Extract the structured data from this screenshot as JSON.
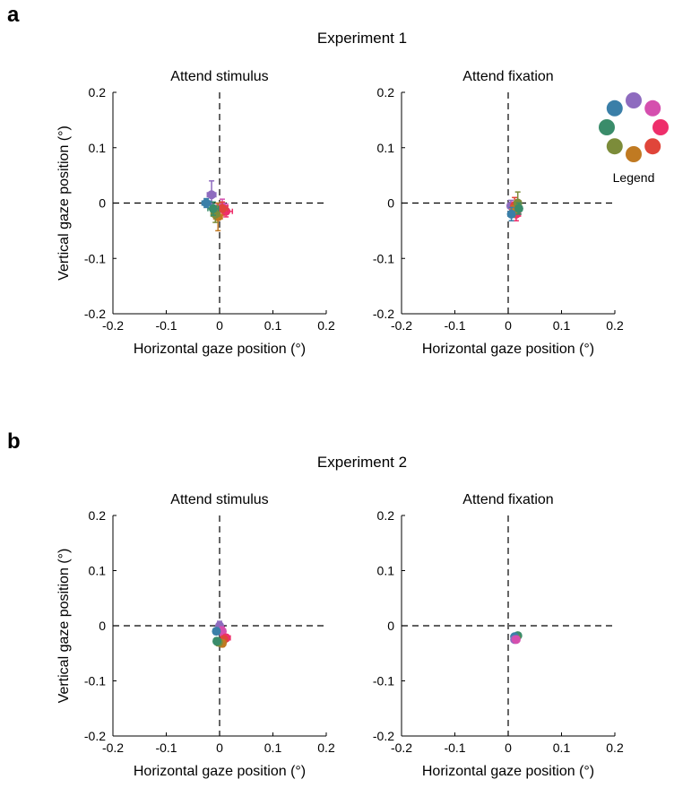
{
  "panels": [
    {
      "letter": "a",
      "title": "Experiment 1"
    },
    {
      "letter": "b",
      "title": "Experiment 2"
    }
  ],
  "legend": {
    "label": "Legend",
    "colors": [
      "#8e6bbf",
      "#d54fae",
      "#ee2f6b",
      "#e0453a",
      "#c07a22",
      "#7c8c3a",
      "#3a8c6a",
      "#3a7fa8"
    ]
  },
  "reference_lines": {
    "x": 0,
    "y": 0,
    "style": "dashed"
  },
  "chart_data": [
    {
      "type": "scatter",
      "experiment": "Experiment 1",
      "title": "Attend stimulus",
      "xlabel": "Horizontal gaze position (°)",
      "ylabel": "Vertical gaze position (°)",
      "xlim": [
        -0.2,
        0.2
      ],
      "ylim": [
        -0.2,
        0.2
      ],
      "xticks": [
        "-0.2",
        "-0.1",
        "0",
        "0.1",
        "0.2"
      ],
      "yticks": [
        "-0.2",
        "-0.1",
        "0",
        "0.1",
        "0.2"
      ],
      "points": [
        {
          "color": "#8e6bbf",
          "x": -0.015,
          "y": 0.015,
          "xerr": 0.008,
          "yerr": 0.025
        },
        {
          "color": "#d54fae",
          "x": 0.005,
          "y": -0.005,
          "xerr": 0.01,
          "yerr": 0.012
        },
        {
          "color": "#ee2f6b",
          "x": 0.012,
          "y": -0.015,
          "xerr": 0.012,
          "yerr": 0.01
        },
        {
          "color": "#e0453a",
          "x": 0.005,
          "y": -0.01,
          "xerr": 0.01,
          "yerr": 0.012
        },
        {
          "color": "#c07a22",
          "x": -0.003,
          "y": -0.025,
          "xerr": 0.008,
          "yerr": 0.025
        },
        {
          "color": "#7c8c3a",
          "x": -0.008,
          "y": -0.02,
          "xerr": 0.008,
          "yerr": 0.015
        },
        {
          "color": "#3a8c6a",
          "x": -0.012,
          "y": -0.01,
          "xerr": 0.01,
          "yerr": 0.012
        },
        {
          "color": "#3a7fa8",
          "x": -0.025,
          "y": 0.0,
          "xerr": 0.008,
          "yerr": 0.008
        }
      ]
    },
    {
      "type": "scatter",
      "experiment": "Experiment 1",
      "title": "Attend fixation",
      "xlabel": "Horizontal gaze position (°)",
      "ylabel": "",
      "xlim": [
        -0.2,
        0.2
      ],
      "ylim": [
        -0.2,
        0.2
      ],
      "xticks": [
        "-0.2",
        "-0.1",
        "0",
        "0.1",
        "0.2"
      ],
      "yticks": [
        "-0.2",
        "-0.1",
        "0",
        "0.1",
        "0.2"
      ],
      "points": [
        {
          "color": "#8e6bbf",
          "x": 0.005,
          "y": -0.005,
          "xerr": 0.006,
          "yerr": 0.01
        },
        {
          "color": "#d54fae",
          "x": 0.01,
          "y": -0.01,
          "xerr": 0.006,
          "yerr": 0.012
        },
        {
          "color": "#ee2f6b",
          "x": 0.015,
          "y": -0.02,
          "xerr": 0.008,
          "yerr": 0.012
        },
        {
          "color": "#e0453a",
          "x": 0.012,
          "y": -0.005,
          "xerr": 0.006,
          "yerr": 0.015
        },
        {
          "color": "#c07a22",
          "x": 0.01,
          "y": -0.015,
          "xerr": 0.006,
          "yerr": 0.01
        },
        {
          "color": "#7c8c3a",
          "x": 0.018,
          "y": 0.0,
          "xerr": 0.006,
          "yerr": 0.02
        },
        {
          "color": "#3a8c6a",
          "x": 0.02,
          "y": -0.01,
          "xerr": 0.006,
          "yerr": 0.01
        },
        {
          "color": "#3a7fa8",
          "x": 0.006,
          "y": -0.02,
          "xerr": 0.006,
          "yerr": 0.012
        }
      ]
    },
    {
      "type": "scatter",
      "experiment": "Experiment 2",
      "title": "Attend stimulus",
      "xlabel": "Horizontal gaze position (°)",
      "ylabel": "Vertical gaze position (°)",
      "xlim": [
        -0.2,
        0.2
      ],
      "ylim": [
        -0.2,
        0.2
      ],
      "xticks": [
        "-0.2",
        "-0.1",
        "0",
        "0.1",
        "0.2"
      ],
      "yticks": [
        "-0.2",
        "-0.1",
        "0",
        "0.1",
        "0.2"
      ],
      "points": [
        {
          "color": "#8e6bbf",
          "x": 0.0,
          "y": 0.0,
          "xerr": 0.005,
          "yerr": 0.008
        },
        {
          "color": "#d54fae",
          "x": 0.005,
          "y": -0.01,
          "xerr": 0.006,
          "yerr": 0.008
        },
        {
          "color": "#ee2f6b",
          "x": 0.012,
          "y": -0.022,
          "xerr": 0.008,
          "yerr": 0.006
        },
        {
          "color": "#e0453a",
          "x": 0.008,
          "y": -0.025,
          "xerr": 0.006,
          "yerr": 0.006
        },
        {
          "color": "#c07a22",
          "x": 0.005,
          "y": -0.032,
          "xerr": 0.006,
          "yerr": 0.006
        },
        {
          "color": "#7c8c3a",
          "x": -0.002,
          "y": -0.03,
          "xerr": 0.006,
          "yerr": 0.006
        },
        {
          "color": "#3a8c6a",
          "x": -0.005,
          "y": -0.028,
          "xerr": 0.006,
          "yerr": 0.006
        },
        {
          "color": "#3a7fa8",
          "x": -0.006,
          "y": -0.01,
          "xerr": 0.006,
          "yerr": 0.006
        }
      ]
    },
    {
      "type": "scatter",
      "experiment": "Experiment 2",
      "title": "Attend fixation",
      "xlabel": "Horizontal gaze position (°)",
      "ylabel": "",
      "xlim": [
        -0.2,
        0.2
      ],
      "ylim": [
        -0.2,
        0.2
      ],
      "xticks": [
        "-0.2",
        "-0.1",
        "0",
        "0.1",
        "0.2"
      ],
      "yticks": [
        "-0.2",
        "-0.1",
        "0",
        "0.1",
        "0.2"
      ],
      "points": [
        {
          "color": "#3a8c6a",
          "x": 0.018,
          "y": -0.018,
          "xerr": 0.004,
          "yerr": 0.004
        },
        {
          "color": "#7c8c3a",
          "x": 0.015,
          "y": -0.022,
          "xerr": 0.004,
          "yerr": 0.004
        },
        {
          "color": "#3a7fa8",
          "x": 0.012,
          "y": -0.02,
          "xerr": 0.004,
          "yerr": 0.004
        },
        {
          "color": "#8e6bbf",
          "x": 0.012,
          "y": -0.025,
          "xerr": 0.004,
          "yerr": 0.004
        },
        {
          "color": "#d54fae",
          "x": 0.015,
          "y": -0.025,
          "xerr": 0.004,
          "yerr": 0.005
        }
      ]
    }
  ]
}
